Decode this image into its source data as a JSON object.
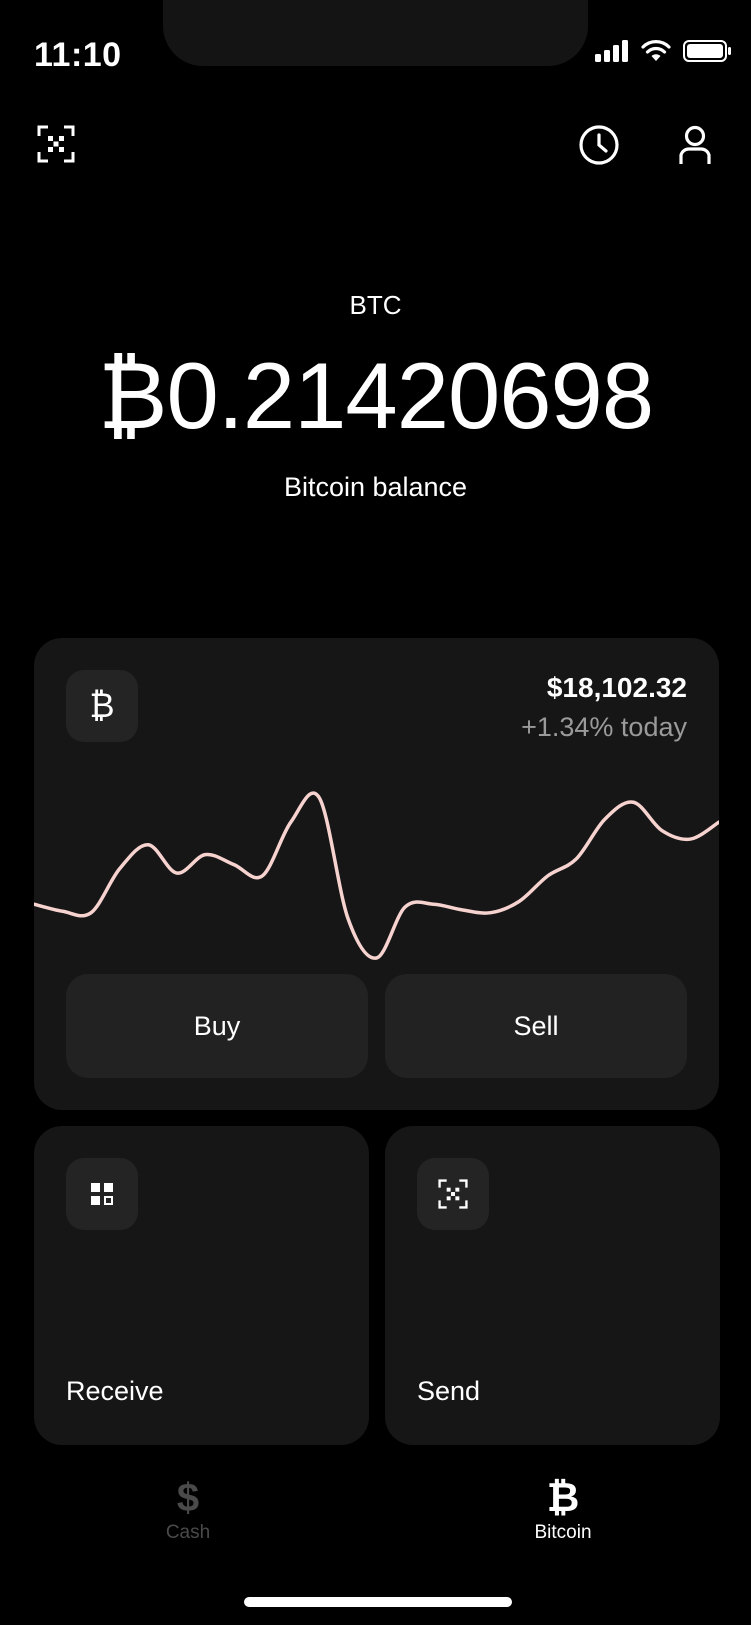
{
  "status_bar": {
    "time": "11:10"
  },
  "header": {
    "scan_icon": "scan-qr-icon",
    "history_icon": "clock-icon",
    "profile_icon": "person-icon"
  },
  "balance": {
    "ticker": "BTC",
    "amount": "₿0.21420698",
    "label": "Bitcoin balance"
  },
  "price_card": {
    "coin_symbol": "₿",
    "price": "$18,102.32",
    "change": "+1.34% today",
    "line_color": "#f7d3d0",
    "buy_label": "Buy",
    "sell_label": "Sell"
  },
  "chart_data": {
    "type": "line",
    "x": [
      0,
      1,
      2,
      3,
      4,
      5,
      6,
      7,
      8,
      9,
      10,
      11,
      12,
      13,
      14,
      15,
      16,
      17,
      18,
      19,
      20,
      21,
      22,
      23,
      24
    ],
    "series": [
      {
        "values": [
          20,
          15,
          14,
          45,
          62,
          42,
          55,
          48,
          40,
          78,
          95,
          10,
          -18,
          18,
          20,
          16,
          14,
          22,
          40,
          52,
          80,
          92,
          72,
          66,
          78
        ]
      }
    ],
    "grid": false
  },
  "tiles": {
    "receive_label": "Receive",
    "send_label": "Send"
  },
  "tab_bar": {
    "cash_glyph": "$",
    "cash_label": "Cash",
    "bitcoin_glyph": "₿",
    "bitcoin_label": "Bitcoin",
    "inactive_color": "#4a4a4a",
    "active_color": "#ffffff"
  }
}
